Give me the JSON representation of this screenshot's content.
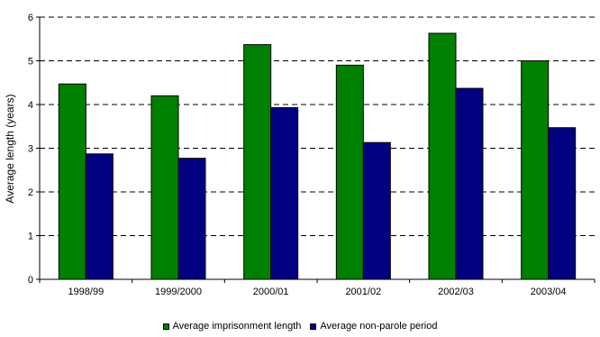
{
  "chart_data": {
    "type": "bar",
    "title": "",
    "xlabel": "",
    "ylabel": "Average length (years)",
    "ylim": [
      0,
      6
    ],
    "yticks": [
      0,
      1,
      2,
      3,
      4,
      5,
      6
    ],
    "ytick_labels": [
      "0",
      "1",
      "2",
      "3",
      "4",
      "5",
      "6"
    ],
    "grid": "horizontal-dashed",
    "legend_position": "bottom",
    "categories": [
      "1998/99",
      "1999/2000",
      "2000/01",
      "2001/02",
      "2002/03",
      "2003/04"
    ],
    "series": [
      {
        "name": "Average imprisonment length",
        "color": "#008000",
        "values": [
          4.47,
          4.2,
          5.37,
          4.9,
          5.63,
          5.0
        ]
      },
      {
        "name": "Average non-parole period",
        "color": "#000080",
        "values": [
          2.87,
          2.77,
          3.93,
          3.13,
          4.37,
          3.47
        ]
      }
    ]
  }
}
